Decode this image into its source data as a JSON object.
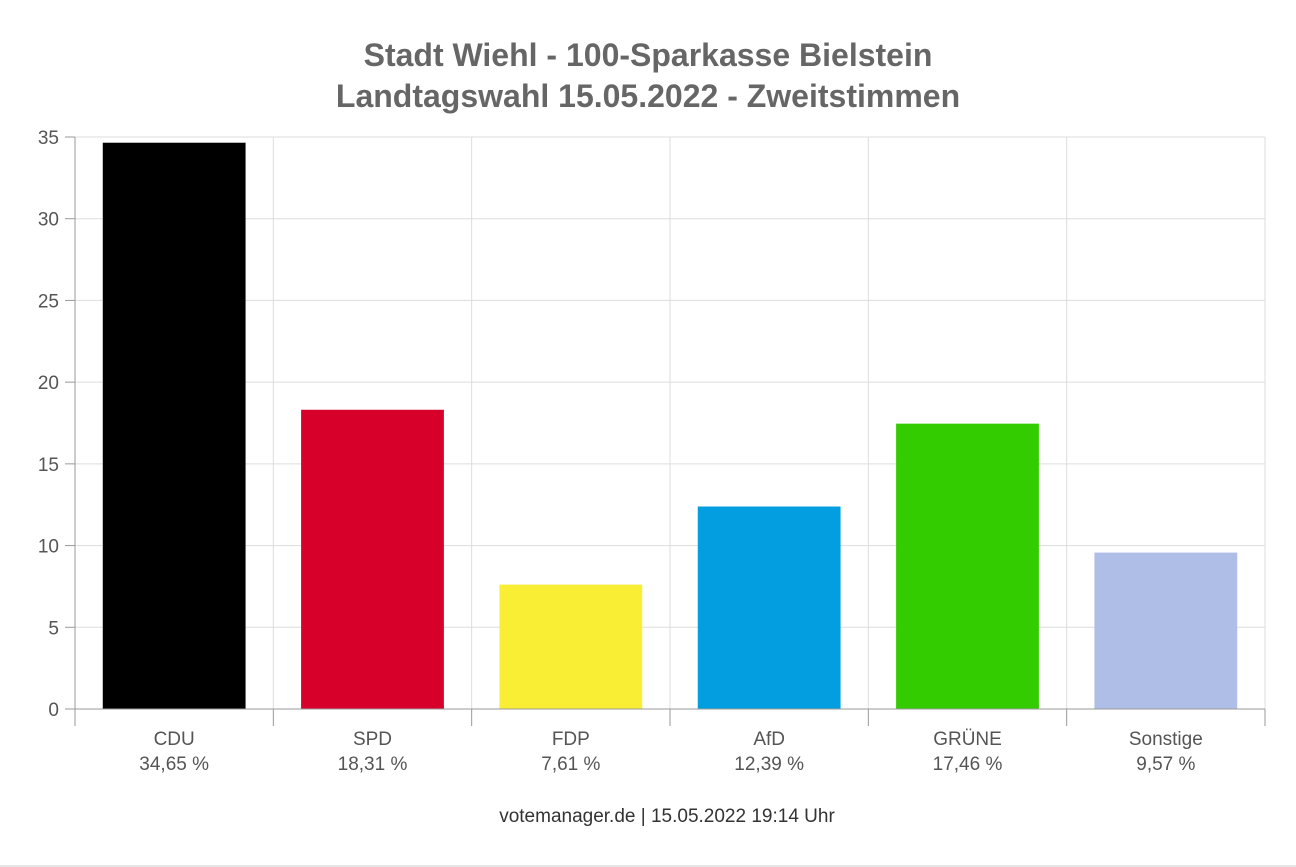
{
  "chart_data": {
    "type": "bar",
    "title_lines": [
      "Stadt Wiehl - 100-Sparkasse Bielstein",
      "Landtagswahl 15.05.2022  - Zweitstimmen"
    ],
    "categories": [
      "CDU",
      "SPD",
      "FDP",
      "AfD",
      "GRÜNE",
      "Sonstige"
    ],
    "values": [
      34.65,
      18.31,
      7.61,
      12.39,
      17.46,
      9.57
    ],
    "value_labels": [
      "34,65 %",
      "18,31 %",
      "7,61 %",
      "12,39 %",
      "17,46 %",
      "9,57 %"
    ],
    "colors": [
      "#000000",
      "#d7002a",
      "#f9ee34",
      "#039ee0",
      "#33cc00",
      "#aebee6"
    ],
    "ylim": [
      0,
      35
    ],
    "yticks": [
      0,
      5,
      10,
      15,
      20,
      25,
      30,
      35
    ],
    "grid": true,
    "xlabel": "",
    "ylabel": "",
    "legend": "none"
  },
  "footer": "votemanager.de | 15.05.2022 19:14 Uhr"
}
